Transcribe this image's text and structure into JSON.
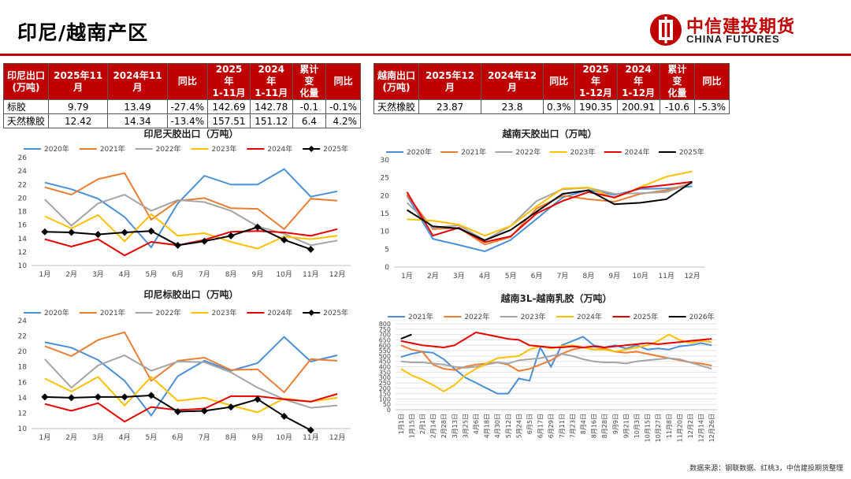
{
  "title": "印尼/越南产区",
  "logo": {
    "cn": "中信建投期货",
    "en": "CHINA FUTURES"
  },
  "table_indonesia": {
    "headers": [
      "印尼出口\n(万吨)",
      "2025年11月",
      "2024年11月",
      "同比",
      "2025年\n1-11月",
      "2024年\n1-11月",
      "累计变\n化量",
      "同比"
    ],
    "rows": [
      [
        "标胶",
        "9.79",
        "13.49",
        "-27.4%",
        "142.69",
        "142.78",
        "-0.1",
        "-0.1%"
      ],
      [
        "天然橡胶",
        "12.42",
        "14.34",
        "-13.4%",
        "157.51",
        "151.12",
        "6.4",
        "4.2%"
      ]
    ]
  },
  "table_vietnam": {
    "headers": [
      "越南出口\n(万吨)",
      "2025年12月",
      "2024年12月",
      "同比",
      "2025年\n1-12月",
      "2024年\n1-12月",
      "累计变\n化量",
      "同比"
    ],
    "rows": [
      [
        "天然橡胶",
        "23.87",
        "23.8",
        "0.3%",
        "190.35",
        "200.91",
        "-10.6",
        "-5.3%"
      ]
    ]
  },
  "source": "数据来源：钢联数据、红桃3，中信建投期货整理",
  "chart_data": [
    {
      "type": "line",
      "title": "印尼天胶出口（万吨）",
      "categories": [
        "1月",
        "2月",
        "3月",
        "4月",
        "5月",
        "6月",
        "7月",
        "8月",
        "9月",
        "10月",
        "11月",
        "12月"
      ],
      "ylim": [
        10,
        26
      ],
      "yticks": [
        10,
        12,
        14,
        16,
        18,
        20,
        22,
        24,
        26
      ],
      "series": [
        {
          "name": "2020年",
          "color": "#4a90d9",
          "values": [
            22.3,
            21.3,
            19.9,
            17.2,
            12.7,
            19.2,
            23.3,
            22.0,
            22.0,
            24.3,
            20.2,
            21.0
          ]
        },
        {
          "name": "2021年",
          "color": "#ed7d31",
          "values": [
            21.6,
            20.5,
            22.8,
            23.7,
            16.8,
            19.6,
            20.0,
            18.5,
            18.4,
            15.4,
            19.9,
            19.6
          ]
        },
        {
          "name": "2022年",
          "color": "#a5a5a5",
          "values": [
            19.8,
            15.9,
            19.2,
            20.5,
            18.1,
            19.7,
            19.4,
            18.1,
            15.8,
            14.7,
            13.0,
            13.7
          ]
        },
        {
          "name": "2023年",
          "color": "#ffc000",
          "values": [
            17.3,
            15.5,
            17.5,
            13.6,
            17.6,
            14.4,
            14.8,
            13.5,
            12.5,
            14.3,
            13.9,
            14.4
          ]
        },
        {
          "name": "2024年",
          "color": "#e60000",
          "values": [
            13.9,
            12.8,
            13.9,
            11.5,
            13.5,
            13.0,
            13.8,
            15.0,
            15.1,
            14.9,
            14.4,
            15.4
          ]
        },
        {
          "name": "2025年",
          "color": "#000000",
          "marker": true,
          "values": [
            15.0,
            14.9,
            14.6,
            14.9,
            15.1,
            13.0,
            13.6,
            14.4,
            15.7,
            13.8,
            12.4,
            null
          ]
        }
      ]
    },
    {
      "type": "line",
      "title": "越南天胶出口（万吨）",
      "categories": [
        "1月",
        "2月",
        "3月",
        "4月",
        "5月",
        "6月",
        "7月",
        "8月",
        "9月",
        "10月",
        "11月",
        "12月"
      ],
      "ylim": [
        0,
        30
      ],
      "yticks": [
        0,
        5,
        10,
        15,
        20,
        25,
        30
      ],
      "series": [
        {
          "name": "2020年",
          "color": "#4a90d9",
          "values": [
            20.0,
            7.9,
            6.2,
            4.4,
            7.6,
            13.5,
            19.5,
            21.6,
            20.2,
            21.9,
            22.0,
            22.6
          ]
        },
        {
          "name": "2021年",
          "color": "#ed7d31",
          "values": [
            20.2,
            10.6,
            11.0,
            6.3,
            8.4,
            16.4,
            20.0,
            19.0,
            18.3,
            20.5,
            21.5,
            23.5
          ]
        },
        {
          "name": "2022年",
          "color": "#a5a5a5",
          "values": [
            18.0,
            11.0,
            11.7,
            7.5,
            11.5,
            18.5,
            21.8,
            22.2,
            20.5,
            20.7,
            21.0,
            23.5
          ]
        },
        {
          "name": "2023年",
          "color": "#ffc000",
          "values": [
            13.4,
            13.0,
            11.9,
            8.8,
            11.5,
            17.0,
            22.0,
            22.3,
            19.3,
            22.4,
            25.3,
            26.8
          ]
        },
        {
          "name": "2024年",
          "color": "#e60000",
          "values": [
            21.0,
            8.8,
            11.0,
            7.0,
            8.6,
            15.0,
            18.5,
            21.0,
            19.5,
            22.2,
            23.0,
            23.9
          ]
        },
        {
          "name": "2025年",
          "color": "#000000",
          "values": [
            16.0,
            11.4,
            10.8,
            7.5,
            10.4,
            15.5,
            20.5,
            21.5,
            17.6,
            18.0,
            19.0,
            23.9
          ]
        }
      ]
    },
    {
      "type": "line",
      "title": "印尼标胶出口（万吨）",
      "categories": [
        "1月",
        "2月",
        "3月",
        "4月",
        "5月",
        "6月",
        "7月",
        "8月",
        "9月",
        "10月",
        "11月",
        "12月"
      ],
      "ylim": [
        10,
        24
      ],
      "yticks": [
        10,
        12,
        14,
        16,
        18,
        20,
        22,
        24
      ],
      "series": [
        {
          "name": "2020年",
          "color": "#4a90d9",
          "values": [
            21.2,
            20.5,
            18.9,
            16.2,
            11.7,
            16.8,
            18.8,
            17.5,
            18.5,
            21.9,
            18.7,
            19.5
          ]
        },
        {
          "name": "2021年",
          "color": "#ed7d31",
          "values": [
            20.7,
            19.4,
            21.5,
            22.5,
            16.2,
            18.8,
            19.2,
            17.6,
            17.7,
            14.7,
            19.0,
            18.8
          ]
        },
        {
          "name": "2022年",
          "color": "#a5a5a5",
          "values": [
            19.0,
            15.3,
            18.2,
            19.5,
            17.5,
            18.7,
            18.6,
            17.3,
            15.3,
            13.8,
            12.7,
            13.0
          ]
        },
        {
          "name": "2023年",
          "color": "#ffc000",
          "values": [
            16.5,
            14.8,
            16.7,
            13.0,
            16.7,
            13.6,
            14.0,
            13.0,
            12.1,
            13.9,
            13.5,
            14.0
          ]
        },
        {
          "name": "2024年",
          "color": "#e60000",
          "values": [
            13.2,
            12.3,
            13.3,
            10.9,
            12.8,
            12.4,
            12.6,
            14.2,
            14.2,
            13.8,
            13.5,
            14.5
          ]
        },
        {
          "name": "2025年",
          "color": "#000000",
          "marker": true,
          "values": [
            14.1,
            14.0,
            14.1,
            14.1,
            14.3,
            12.2,
            12.3,
            12.8,
            13.8,
            11.6,
            9.8,
            null
          ]
        }
      ]
    },
    {
      "type": "line",
      "title": "越南3L-越南乳胶（万吨）",
      "x_tick_labels": [
        "1月1日",
        "1月15日",
        "2月1日",
        "2月14日",
        "2月28日",
        "3月13日",
        "3月25日",
        "4月6日",
        "4月18日",
        "4月30日",
        "5月12日",
        "5月24日",
        "6月5日",
        "6月17日",
        "6月29日",
        "7月11日",
        "7月23日",
        "8月4日",
        "8月16日",
        "8月28日",
        "9月9日",
        "9月21日",
        "10月3日",
        "10月15日",
        "10月27日",
        "11月8日",
        "11月20日",
        "12月2日",
        "12月14日",
        "12月26日"
      ],
      "ylim": [
        0,
        800
      ],
      "yticks": [
        0,
        50,
        100,
        150,
        200,
        250,
        300,
        350,
        400,
        450,
        500,
        550,
        600,
        650,
        700,
        750,
        800
      ],
      "series": [
        {
          "name": "2021年",
          "color": "#4a90d9",
          "values": [
            490,
            520,
            540,
            530,
            470,
            380,
            300,
            250,
            200,
            150,
            150,
            290,
            270,
            580,
            400,
            600,
            640,
            680,
            600,
            580,
            600,
            570,
            600,
            560,
            570,
            560,
            590,
            600,
            620,
            600
          ]
        },
        {
          "name": "2022年",
          "color": "#ed7d31",
          "values": [
            600,
            560,
            540,
            420,
            380,
            370,
            400,
            420,
            430,
            440,
            420,
            360,
            380,
            420,
            460,
            520,
            560,
            580,
            560,
            570,
            540,
            530,
            540,
            520,
            500,
            480,
            460,
            440,
            430,
            410
          ]
        },
        {
          "name": "2023年",
          "color": "#a5a5a5",
          "values": [
            450,
            440,
            440,
            430,
            420,
            400,
            390,
            400,
            420,
            440,
            430,
            460,
            470,
            480,
            500,
            520,
            500,
            470,
            450,
            440,
            440,
            430,
            450,
            460,
            470,
            480,
            470,
            440,
            410,
            380
          ]
        },
        {
          "name": "2024年",
          "color": "#ffc000",
          "values": [
            380,
            320,
            280,
            230,
            170,
            230,
            320,
            380,
            430,
            480,
            490,
            500,
            560,
            590,
            570,
            590,
            600,
            580,
            560,
            560,
            540,
            560,
            580,
            600,
            640,
            700,
            650,
            620,
            640,
            630
          ]
        },
        {
          "name": "2025年",
          "color": "#e60000",
          "values": [
            640,
            620,
            600,
            590,
            580,
            600,
            660,
            720,
            700,
            680,
            660,
            650,
            600,
            590,
            580,
            580,
            590,
            580,
            590,
            580,
            590,
            600,
            610,
            620,
            610,
            620,
            630,
            640,
            650,
            660
          ]
        },
        {
          "name": "2026年",
          "color": "#000000",
          "values": [
            660,
            700
          ]
        }
      ]
    }
  ]
}
